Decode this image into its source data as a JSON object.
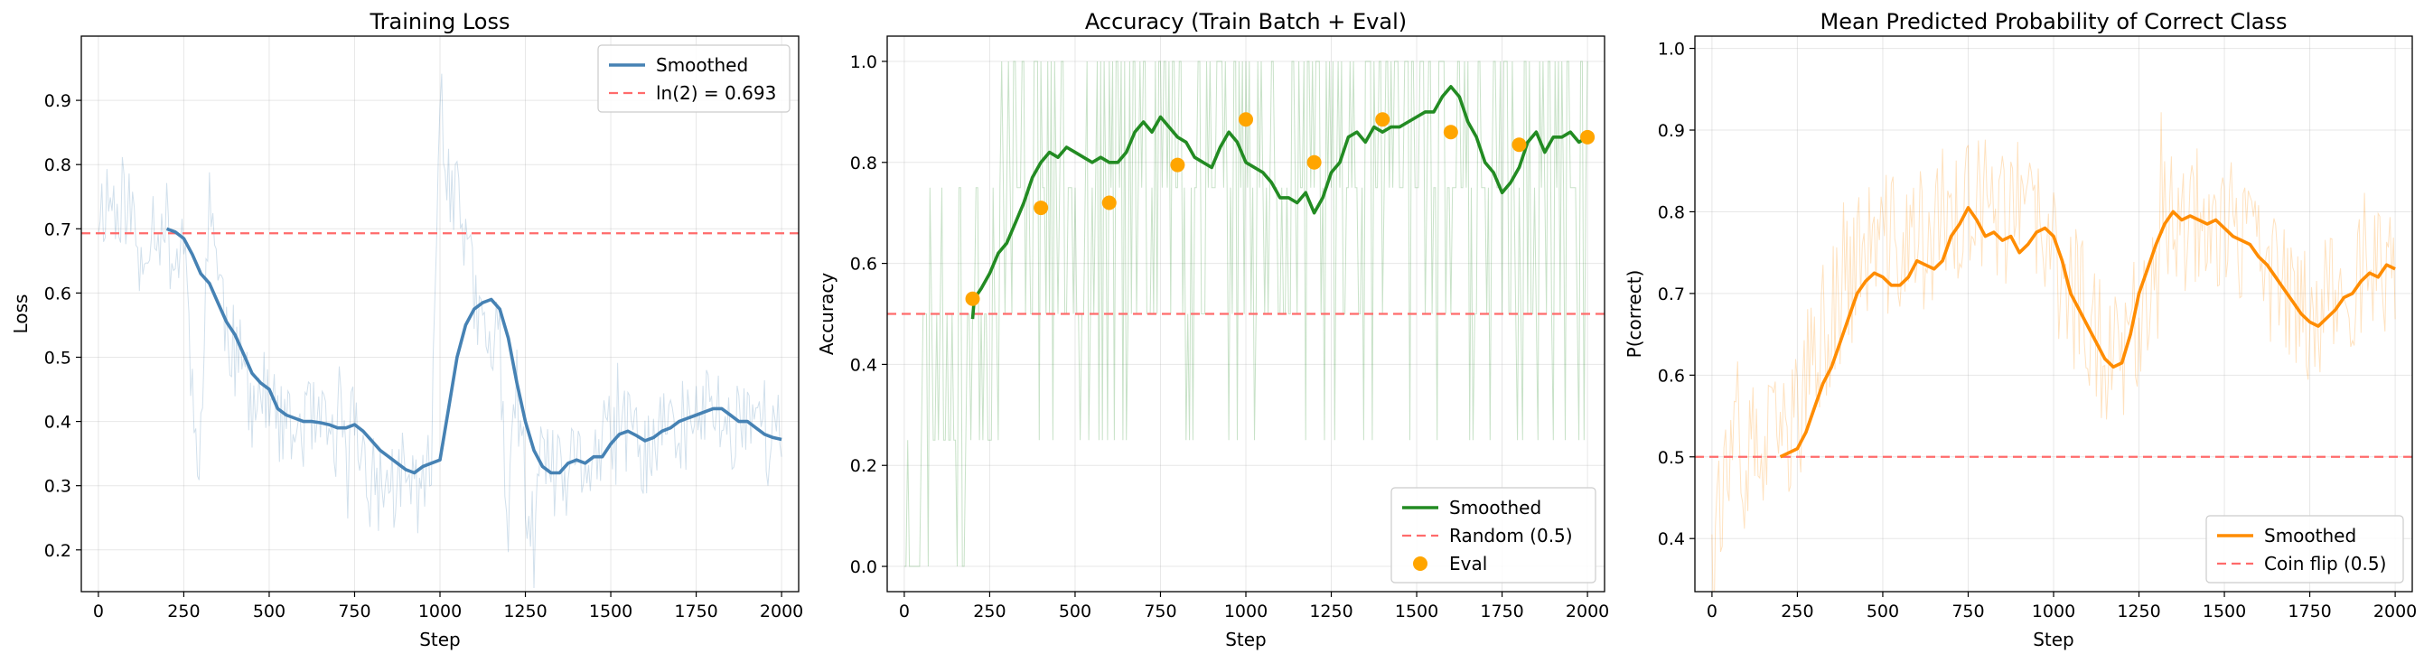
{
  "chart_data": [
    {
      "type": "line",
      "title": "Training Loss",
      "xlabel": "Step",
      "ylabel": "Loss",
      "xlim": [
        -50,
        2050
      ],
      "ylim": [
        0.135,
        1.0
      ],
      "xticks": [
        0,
        250,
        500,
        750,
        1000,
        1250,
        1500,
        1750,
        2000
      ],
      "yticks": [
        0.2,
        0.3,
        0.4,
        0.5,
        0.6,
        0.7,
        0.8,
        0.9
      ],
      "ytick_decimals": 1,
      "grid": true,
      "legend": {
        "placement": "top-right",
        "entries": [
          "Smoothed",
          "ln(2) = 0.693"
        ]
      },
      "raw_color": "#4682b4",
      "smooth_color": "#4682b4",
      "ref_color": "#ff6b6b",
      "ref_value": 0.693,
      "raw_seed": 11,
      "raw_noise": 0.075,
      "raw_anchors": [
        [
          0,
          0.73
        ],
        [
          25,
          0.75
        ],
        [
          50,
          0.74
        ],
        [
          75,
          0.75
        ],
        [
          100,
          0.72
        ],
        [
          125,
          0.62
        ],
        [
          150,
          0.72
        ],
        [
          175,
          0.71
        ],
        [
          200,
          0.7
        ],
        [
          225,
          0.64
        ],
        [
          250,
          0.7
        ],
        [
          275,
          0.45
        ],
        [
          300,
          0.35
        ],
        [
          325,
          0.79
        ],
        [
          350,
          0.62
        ],
        [
          400,
          0.5
        ],
        [
          450,
          0.45
        ],
        [
          500,
          0.43
        ],
        [
          550,
          0.37
        ],
        [
          600,
          0.4
        ],
        [
          650,
          0.38
        ],
        [
          700,
          0.37
        ],
        [
          750,
          0.4
        ],
        [
          800,
          0.3
        ],
        [
          850,
          0.3
        ],
        [
          900,
          0.3
        ],
        [
          950,
          0.3
        ],
        [
          975,
          0.32
        ],
        [
          1000,
          0.96
        ],
        [
          1025,
          0.75
        ],
        [
          1050,
          0.8
        ],
        [
          1100,
          0.58
        ],
        [
          1150,
          0.5
        ],
        [
          1175,
          0.55
        ],
        [
          1200,
          0.22
        ],
        [
          1225,
          0.45
        ],
        [
          1250,
          0.3
        ],
        [
          1275,
          0.2
        ],
        [
          1300,
          0.35
        ],
        [
          1350,
          0.3
        ],
        [
          1400,
          0.33
        ],
        [
          1450,
          0.34
        ],
        [
          1500,
          0.37
        ],
        [
          1550,
          0.38
        ],
        [
          1600,
          0.35
        ],
        [
          1650,
          0.38
        ],
        [
          1700,
          0.39
        ],
        [
          1750,
          0.4
        ],
        [
          1800,
          0.43
        ],
        [
          1850,
          0.38
        ],
        [
          1900,
          0.43
        ],
        [
          1950,
          0.4
        ],
        [
          2000,
          0.37
        ]
      ],
      "smoothed": {
        "name": "Smoothed",
        "x": [
          200,
          225,
          250,
          275,
          300,
          325,
          350,
          375,
          400,
          425,
          450,
          475,
          500,
          525,
          550,
          575,
          600,
          625,
          650,
          675,
          700,
          725,
          750,
          775,
          800,
          825,
          850,
          875,
          900,
          925,
          950,
          975,
          1000,
          1025,
          1050,
          1075,
          1100,
          1125,
          1150,
          1175,
          1200,
          1225,
          1250,
          1275,
          1300,
          1325,
          1350,
          1375,
          1400,
          1425,
          1450,
          1475,
          1500,
          1525,
          1550,
          1575,
          1600,
          1625,
          1650,
          1675,
          1700,
          1725,
          1750,
          1775,
          1800,
          1825,
          1850,
          1875,
          1900,
          1925,
          1950,
          1975,
          2000
        ],
        "y": [
          0.7,
          0.695,
          0.685,
          0.66,
          0.63,
          0.615,
          0.585,
          0.555,
          0.535,
          0.505,
          0.475,
          0.46,
          0.45,
          0.42,
          0.41,
          0.405,
          0.4,
          0.4,
          0.398,
          0.395,
          0.39,
          0.39,
          0.395,
          0.385,
          0.37,
          0.355,
          0.345,
          0.335,
          0.325,
          0.32,
          0.33,
          0.335,
          0.34,
          0.42,
          0.5,
          0.55,
          0.575,
          0.585,
          0.59,
          0.575,
          0.53,
          0.46,
          0.4,
          0.355,
          0.33,
          0.32,
          0.32,
          0.335,
          0.34,
          0.335,
          0.345,
          0.345,
          0.365,
          0.38,
          0.385,
          0.378,
          0.37,
          0.375,
          0.385,
          0.39,
          0.4,
          0.405,
          0.41,
          0.415,
          0.42,
          0.42,
          0.41,
          0.4,
          0.4,
          0.39,
          0.38,
          0.375,
          0.372
        ]
      }
    },
    {
      "type": "line",
      "title": "Accuracy (Train Batch + Eval)",
      "xlabel": "Step",
      "ylabel": "Accuracy",
      "xlim": [
        -50,
        2050
      ],
      "ylim": [
        -0.05,
        1.05
      ],
      "xticks": [
        0,
        250,
        500,
        750,
        1000,
        1250,
        1500,
        1750,
        2000
      ],
      "yticks": [
        0.0,
        0.2,
        0.4,
        0.6,
        0.8,
        1.0
      ],
      "ytick_decimals": 1,
      "grid": true,
      "legend": {
        "placement": "bottom-right",
        "entries": [
          "Smoothed",
          "Random (0.5)",
          "Eval"
        ]
      },
      "raw_color": "#228b22",
      "smooth_color": "#228b22",
      "ref_color": "#ff6b6b",
      "ref_value": 0.5,
      "eval_color": "#ffa500",
      "raw_seed": 23,
      "raw_levels": [
        0.0,
        0.25,
        0.5,
        0.75,
        1.0
      ],
      "raw_anchors": [
        [
          0,
          0.0
        ],
        [
          100,
          0.5
        ],
        [
          150,
          0.5
        ],
        [
          175,
          0.25
        ],
        [
          200,
          0.5
        ],
        [
          300,
          0.75
        ],
        [
          400,
          0.8
        ],
        [
          500,
          0.82
        ],
        [
          600,
          0.82
        ],
        [
          700,
          0.85
        ],
        [
          800,
          0.85
        ],
        [
          900,
          0.82
        ],
        [
          1000,
          0.8
        ],
        [
          1100,
          0.72
        ],
        [
          1200,
          0.75
        ],
        [
          1300,
          0.85
        ],
        [
          1400,
          0.85
        ],
        [
          1500,
          0.9
        ],
        [
          1600,
          0.88
        ],
        [
          1700,
          0.8
        ],
        [
          1800,
          0.8
        ],
        [
          1900,
          0.82
        ],
        [
          2000,
          0.85
        ]
      ],
      "smoothed": {
        "name": "Smoothed",
        "x": [
          200,
          205,
          225,
          250,
          275,
          300,
          325,
          350,
          375,
          400,
          425,
          450,
          475,
          500,
          525,
          550,
          575,
          600,
          625,
          650,
          675,
          700,
          725,
          750,
          775,
          800,
          825,
          850,
          875,
          900,
          925,
          950,
          975,
          1000,
          1025,
          1050,
          1075,
          1100,
          1125,
          1150,
          1175,
          1200,
          1225,
          1250,
          1275,
          1300,
          1325,
          1350,
          1375,
          1400,
          1425,
          1450,
          1475,
          1500,
          1525,
          1550,
          1575,
          1600,
          1625,
          1650,
          1675,
          1700,
          1725,
          1750,
          1775,
          1800,
          1825,
          1850,
          1875,
          1900,
          1925,
          1950,
          1975,
          2000
        ],
        "y": [
          0.49,
          0.53,
          0.55,
          0.58,
          0.62,
          0.64,
          0.68,
          0.72,
          0.77,
          0.8,
          0.82,
          0.81,
          0.83,
          0.82,
          0.81,
          0.8,
          0.81,
          0.8,
          0.8,
          0.82,
          0.86,
          0.88,
          0.86,
          0.89,
          0.87,
          0.85,
          0.84,
          0.81,
          0.8,
          0.79,
          0.83,
          0.86,
          0.84,
          0.8,
          0.79,
          0.78,
          0.76,
          0.73,
          0.73,
          0.72,
          0.74,
          0.7,
          0.73,
          0.78,
          0.8,
          0.85,
          0.86,
          0.84,
          0.87,
          0.86,
          0.87,
          0.87,
          0.88,
          0.89,
          0.9,
          0.9,
          0.93,
          0.95,
          0.93,
          0.88,
          0.85,
          0.8,
          0.78,
          0.74,
          0.76,
          0.79,
          0.84,
          0.86,
          0.82,
          0.85,
          0.85,
          0.86,
          0.84,
          0.85
        ]
      },
      "eval": {
        "name": "Eval",
        "x": [
          200,
          400,
          600,
          800,
          1000,
          1200,
          1400,
          1600,
          1800,
          2000
        ],
        "y": [
          0.53,
          0.71,
          0.72,
          0.795,
          0.885,
          0.8,
          0.885,
          0.86,
          0.835,
          0.85
        ]
      }
    },
    {
      "type": "line",
      "title": "Mean Predicted Probability of Correct Class",
      "xlabel": "Step",
      "ylabel": "P(correct)",
      "xlim": [
        -50,
        2050
      ],
      "ylim": [
        0.335,
        1.015
      ],
      "xticks": [
        0,
        250,
        500,
        750,
        1000,
        1250,
        1500,
        1750,
        2000
      ],
      "yticks": [
        0.4,
        0.5,
        0.6,
        0.7,
        0.8,
        0.9,
        1.0
      ],
      "ytick_decimals": 1,
      "grid": true,
      "legend": {
        "placement": "bottom-right",
        "entries": [
          "Smoothed",
          "Coin flip (0.5)"
        ]
      },
      "raw_color": "#ff8c00",
      "smooth_color": "#ff8c00",
      "ref_color": "#ff6b6b",
      "ref_value": 0.5,
      "raw_seed": 37,
      "raw_noise": 0.09,
      "raw_anchors": [
        [
          0,
          0.45
        ],
        [
          50,
          0.47
        ],
        [
          100,
          0.5
        ],
        [
          150,
          0.5
        ],
        [
          200,
          0.52
        ],
        [
          250,
          0.55
        ],
        [
          300,
          0.62
        ],
        [
          350,
          0.68
        ],
        [
          400,
          0.72
        ],
        [
          450,
          0.75
        ],
        [
          500,
          0.76
        ],
        [
          550,
          0.76
        ],
        [
          600,
          0.76
        ],
        [
          650,
          0.78
        ],
        [
          700,
          0.8
        ],
        [
          750,
          0.8
        ],
        [
          800,
          0.8
        ],
        [
          850,
          0.8
        ],
        [
          900,
          0.8
        ],
        [
          950,
          0.78
        ],
        [
          1000,
          0.74
        ],
        [
          1050,
          0.7
        ],
        [
          1100,
          0.68
        ],
        [
          1150,
          0.62
        ],
        [
          1200,
          0.62
        ],
        [
          1250,
          0.68
        ],
        [
          1300,
          0.75
        ],
        [
          1350,
          0.8
        ],
        [
          1400,
          0.8
        ],
        [
          1450,
          0.8
        ],
        [
          1500,
          0.78
        ],
        [
          1550,
          0.76
        ],
        [
          1600,
          0.74
        ],
        [
          1650,
          0.72
        ],
        [
          1700,
          0.68
        ],
        [
          1750,
          0.68
        ],
        [
          1800,
          0.7
        ],
        [
          1850,
          0.7
        ],
        [
          1900,
          0.72
        ],
        [
          1950,
          0.73
        ],
        [
          2000,
          0.73
        ]
      ],
      "smoothed": {
        "name": "Smoothed",
        "x": [
          200,
          225,
          250,
          275,
          300,
          325,
          350,
          375,
          400,
          425,
          450,
          475,
          500,
          525,
          550,
          575,
          600,
          625,
          650,
          675,
          700,
          725,
          750,
          775,
          800,
          825,
          850,
          875,
          900,
          925,
          950,
          975,
          1000,
          1025,
          1050,
          1075,
          1100,
          1125,
          1150,
          1175,
          1200,
          1225,
          1250,
          1275,
          1300,
          1325,
          1350,
          1375,
          1400,
          1425,
          1450,
          1475,
          1500,
          1525,
          1550,
          1575,
          1600,
          1625,
          1650,
          1675,
          1700,
          1725,
          1750,
          1775,
          1800,
          1825,
          1850,
          1875,
          1900,
          1925,
          1950,
          1975,
          2000
        ],
        "y": [
          0.5,
          0.505,
          0.51,
          0.53,
          0.56,
          0.59,
          0.61,
          0.64,
          0.67,
          0.7,
          0.715,
          0.725,
          0.72,
          0.71,
          0.71,
          0.72,
          0.74,
          0.735,
          0.73,
          0.74,
          0.77,
          0.785,
          0.805,
          0.79,
          0.77,
          0.775,
          0.765,
          0.77,
          0.75,
          0.76,
          0.775,
          0.78,
          0.77,
          0.74,
          0.7,
          0.68,
          0.66,
          0.64,
          0.62,
          0.61,
          0.615,
          0.65,
          0.7,
          0.73,
          0.76,
          0.785,
          0.8,
          0.79,
          0.795,
          0.79,
          0.785,
          0.79,
          0.78,
          0.77,
          0.765,
          0.76,
          0.745,
          0.735,
          0.72,
          0.705,
          0.69,
          0.675,
          0.665,
          0.66,
          0.67,
          0.68,
          0.695,
          0.7,
          0.715,
          0.725,
          0.72,
          0.735,
          0.73
        ]
      }
    }
  ]
}
